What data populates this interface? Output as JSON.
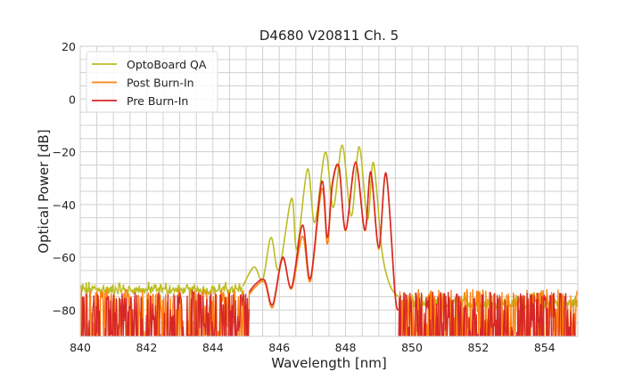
{
  "chart_data": {
    "type": "line",
    "title": "D4680 V20811 Ch. 5",
    "xlabel": "Wavelength [nm]",
    "ylabel": "Optical Power [dB]",
    "xlim": [
      840,
      855
    ],
    "ylim": [
      -90,
      20
    ],
    "xticks": [
      840,
      842,
      844,
      846,
      848,
      850,
      852,
      854
    ],
    "yticks": [
      -80,
      -60,
      -40,
      -20,
      0,
      20
    ],
    "xtick_labels": [
      "840",
      "842",
      "844",
      "846",
      "848",
      "850",
      "852",
      "854"
    ],
    "ytick_labels": [
      "−80",
      "−60",
      "−40",
      "−20",
      "0",
      "20"
    ],
    "minor_grid_step": {
      "x": 0.5,
      "y": 5
    },
    "grid": true,
    "legend_position": "top-left",
    "series": [
      {
        "name": "OptoBoard QA",
        "color": "#bcbd22",
        "noise": {
          "left_range": [
            840,
            844.9
          ],
          "right_range": [
            849.6,
            855
          ],
          "left_floor": [
            -76,
            -69
          ],
          "right_floor": [
            -82,
            -73
          ],
          "style": "smooth"
        },
        "peak_points": [
          [
            844.9,
            -71
          ],
          [
            845.24,
            -63.7
          ],
          [
            845.5,
            -68.5
          ],
          [
            845.75,
            -52.5
          ],
          [
            845.99,
            -64.7
          ],
          [
            846.37,
            -37.7
          ],
          [
            846.53,
            -56.9
          ],
          [
            846.85,
            -26.6
          ],
          [
            847.07,
            -46.8
          ],
          [
            847.39,
            -20.1
          ],
          [
            847.63,
            -41.1
          ],
          [
            847.9,
            -17.5
          ],
          [
            848.17,
            -44.4
          ],
          [
            848.41,
            -18.1
          ],
          [
            848.66,
            -45.7
          ],
          [
            848.84,
            -24.2
          ],
          [
            849.1,
            -58
          ],
          [
            849.35,
            -71
          ],
          [
            849.6,
            -75
          ]
        ]
      },
      {
        "name": "Post Burn-In",
        "color": "#ff7f0e",
        "noise": {
          "left_range": [
            840,
            845.1
          ],
          "right_range": [
            849.6,
            855
          ],
          "left_floor": [
            -90,
            -72
          ],
          "right_floor": [
            -90,
            -72
          ],
          "style": "spiky"
        },
        "peak_points": [
          [
            845.1,
            -74
          ],
          [
            845.3,
            -71
          ],
          [
            845.56,
            -69.5
          ],
          [
            845.8,
            -79
          ],
          [
            846.1,
            -60.5
          ],
          [
            846.37,
            -72
          ],
          [
            846.7,
            -52
          ],
          [
            846.94,
            -69
          ],
          [
            847.28,
            -34
          ],
          [
            847.45,
            -55
          ],
          [
            847.6,
            -33
          ],
          [
            847.8,
            -26
          ],
          [
            848.0,
            -50
          ],
          [
            848.3,
            -24.5
          ],
          [
            848.58,
            -50
          ],
          [
            848.76,
            -28
          ],
          [
            849.0,
            -57
          ],
          [
            849.22,
            -28.5
          ],
          [
            849.49,
            -74
          ],
          [
            849.6,
            -80
          ]
        ]
      },
      {
        "name": "Pre Burn-In",
        "color": "#d62728",
        "noise": {
          "left_range": [
            840,
            845.1
          ],
          "right_range": [
            849.6,
            855
          ],
          "left_floor": [
            -90,
            -73
          ],
          "right_floor": [
            -90,
            -73
          ],
          "style": "spiky"
        },
        "peak_points": [
          [
            845.1,
            -73
          ],
          [
            845.3,
            -70
          ],
          [
            845.56,
            -68.7
          ],
          [
            845.8,
            -78
          ],
          [
            846.1,
            -60
          ],
          [
            846.37,
            -71.4
          ],
          [
            846.7,
            -47.8
          ],
          [
            846.94,
            -68
          ],
          [
            847.28,
            -31.3
          ],
          [
            847.45,
            -52.5
          ],
          [
            847.6,
            -32
          ],
          [
            847.8,
            -25.6
          ],
          [
            848.0,
            -49.6
          ],
          [
            848.3,
            -23.9
          ],
          [
            848.58,
            -49.6
          ],
          [
            848.76,
            -27.6
          ],
          [
            849.0,
            -56.3
          ],
          [
            849.22,
            -28.2
          ],
          [
            849.49,
            -73.8
          ],
          [
            849.6,
            -80
          ]
        ]
      }
    ]
  }
}
